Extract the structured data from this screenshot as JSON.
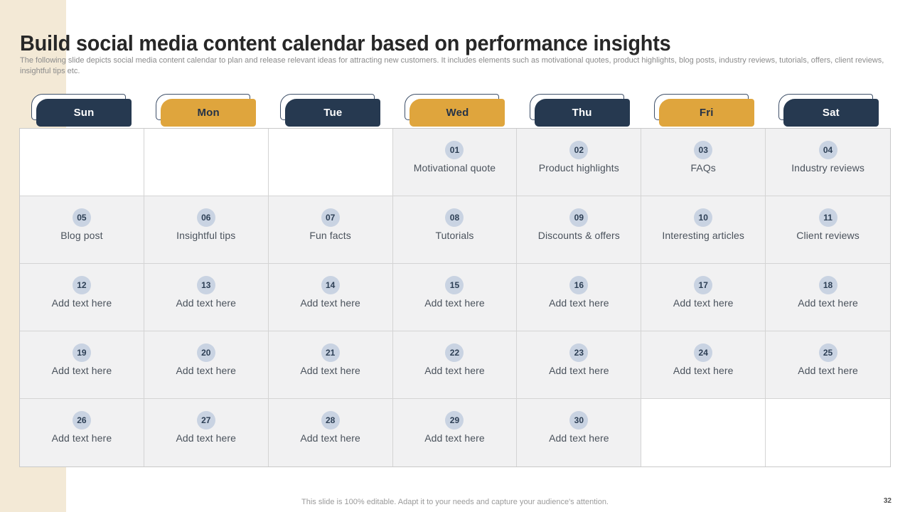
{
  "slide": {
    "title": "Build social media content calendar based on performance insights",
    "subtitle": "The following slide depicts social media content calendar to plan and release relevant ideas for attracting new customers. It includes elements such as motivational quotes, product highlights, blog posts, industry reviews, tutorials, offers, client reviews, insightful tips etc.",
    "footer_note": "This slide is 100% editable. Adapt it to your needs and capture your audience's attention.",
    "page_number": "32"
  },
  "colors": {
    "navy": "#263950",
    "gold": "#dfa53d",
    "beige": "#f3e9d6",
    "cell_bg": "#f1f1f2",
    "badge_bg": "#c9d3e2"
  },
  "calendar": {
    "day_headers": [
      {
        "label": "Sun",
        "variant": "navy"
      },
      {
        "label": "Mon",
        "variant": "gold"
      },
      {
        "label": "Tue",
        "variant": "navy"
      },
      {
        "label": "Wed",
        "variant": "gold"
      },
      {
        "label": "Thu",
        "variant": "navy"
      },
      {
        "label": "Fri",
        "variant": "gold"
      },
      {
        "label": "Sat",
        "variant": "navy"
      }
    ],
    "weeks": [
      [
        {
          "empty": true
        },
        {
          "empty": true
        },
        {
          "empty": true
        },
        {
          "num": "01",
          "label": "Motivational quote"
        },
        {
          "num": "02",
          "label": "Product highlights"
        },
        {
          "num": "03",
          "label": "FAQs"
        },
        {
          "num": "04",
          "label": "Industry reviews"
        }
      ],
      [
        {
          "num": "05",
          "label": "Blog post"
        },
        {
          "num": "06",
          "label": "Insightful tips"
        },
        {
          "num": "07",
          "label": "Fun facts"
        },
        {
          "num": "08",
          "label": "Tutorials"
        },
        {
          "num": "09",
          "label": "Discounts & offers"
        },
        {
          "num": "10",
          "label": "Interesting articles"
        },
        {
          "num": "11",
          "label": "Client reviews"
        }
      ],
      [
        {
          "num": "12",
          "label": "Add text here"
        },
        {
          "num": "13",
          "label": "Add text here"
        },
        {
          "num": "14",
          "label": "Add text here"
        },
        {
          "num": "15",
          "label": "Add text here"
        },
        {
          "num": "16",
          "label": "Add text here"
        },
        {
          "num": "17",
          "label": "Add text here"
        },
        {
          "num": "18",
          "label": "Add text here"
        }
      ],
      [
        {
          "num": "19",
          "label": "Add text here"
        },
        {
          "num": "20",
          "label": "Add text here"
        },
        {
          "num": "21",
          "label": "Add text here"
        },
        {
          "num": "22",
          "label": "Add text here"
        },
        {
          "num": "23",
          "label": "Add text here"
        },
        {
          "num": "24",
          "label": "Add text here"
        },
        {
          "num": "25",
          "label": "Add text here"
        }
      ],
      [
        {
          "num": "26",
          "label": "Add text here"
        },
        {
          "num": "27",
          "label": "Add text here"
        },
        {
          "num": "28",
          "label": "Add text here"
        },
        {
          "num": "29",
          "label": "Add text here"
        },
        {
          "num": "30",
          "label": "Add text here"
        },
        {
          "empty": true
        },
        {
          "empty": true
        }
      ]
    ]
  }
}
